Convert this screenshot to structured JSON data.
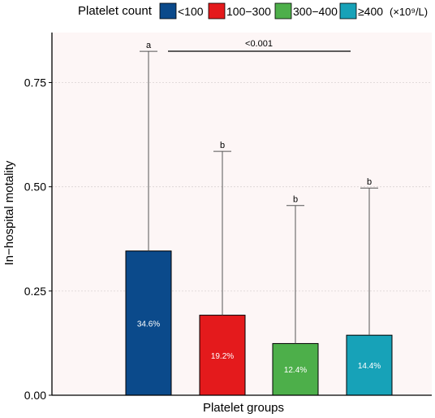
{
  "chart_data": {
    "type": "bar",
    "categories": [
      "<100",
      "100–300",
      "300–400",
      "≥400"
    ],
    "values": [
      0.346,
      0.192,
      0.124,
      0.144
    ],
    "error_upper": [
      0.825,
      0.585,
      0.455,
      0.497
    ],
    "value_labels": [
      "34.6%",
      "19.2%",
      "12.4%",
      "14.4%"
    ],
    "significance_letters": [
      "a",
      "b",
      "b",
      "b"
    ],
    "colors": [
      "#0b4a8b",
      "#e41a1c",
      "#4daf4a",
      "#17a2b8"
    ],
    "background_color": "#fdf6f6",
    "legend": {
      "title": "Platelet count",
      "unit": "(×10⁹/L)",
      "entries": [
        "<100",
        "100−300",
        "300−400",
        "≥400"
      ],
      "placement": "top"
    },
    "comparison": {
      "label": "<0.001",
      "from_category": 0,
      "to_category": 3
    },
    "xlabel": "Platelet groups",
    "ylabel": "In−hospital motality",
    "yticks": [
      0.0,
      0.25,
      0.5,
      0.75
    ],
    "ytick_labels": [
      "0.00",
      "0.25",
      "0.50",
      "0.75"
    ],
    "ylim": [
      0,
      0.87
    ],
    "grid": true
  }
}
